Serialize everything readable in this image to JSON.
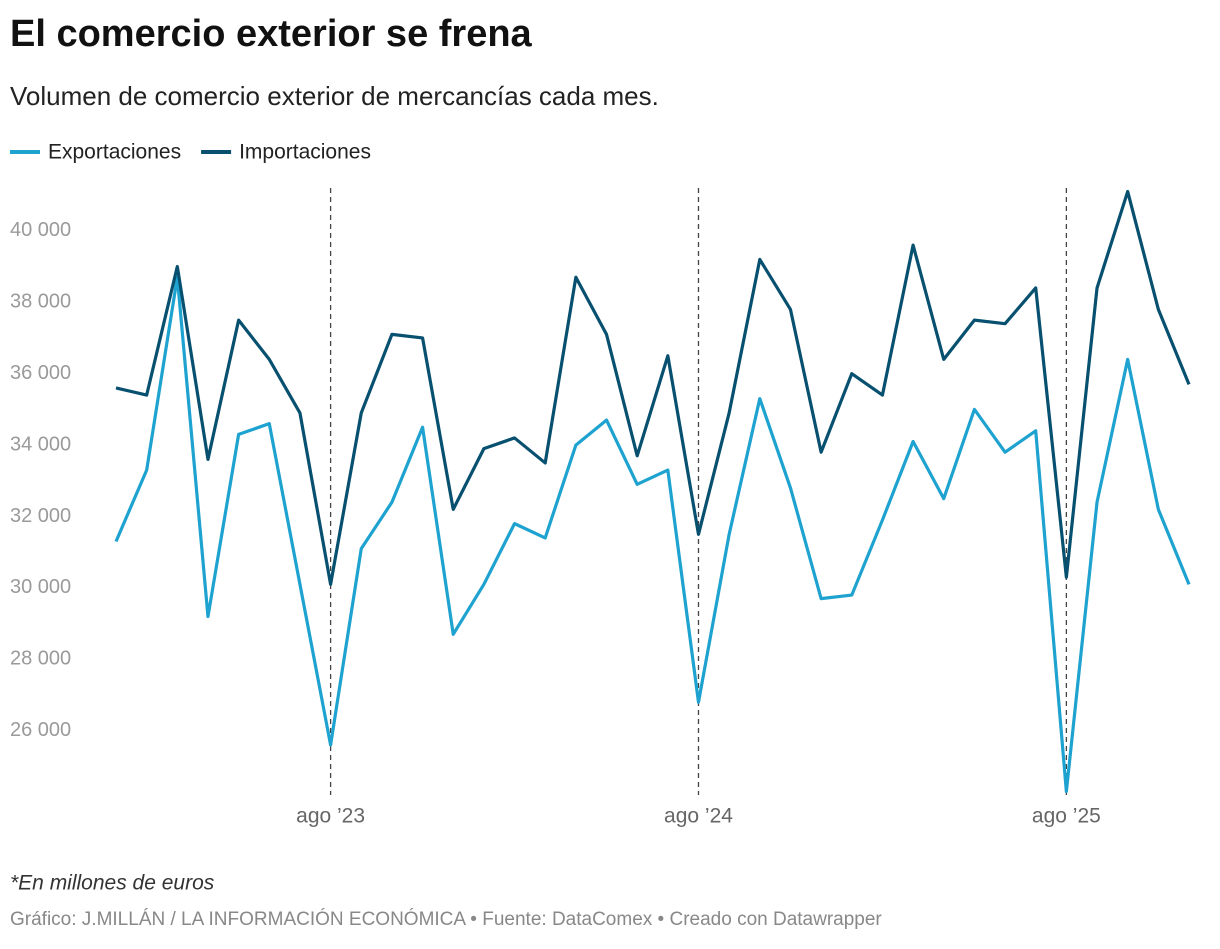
{
  "chart_data": {
    "type": "line",
    "title": "El comercio exterior se frena",
    "subtitle": "Volumen de comercio exterior de mercancías cada mes.",
    "note": "*En millones de euros",
    "source": "Gráfico: J.MILLÁN / LA INFORMACIÓN ECONÓMICA • Fuente: DataComex • Creado con Datawrapper",
    "categories": [
      null,
      null,
      null,
      null,
      null,
      null,
      null,
      "ago ’23",
      null,
      null,
      null,
      null,
      null,
      null,
      null,
      null,
      null,
      null,
      null,
      "ago ’24",
      null,
      null,
      null,
      null,
      null,
      null,
      null,
      null,
      null,
      null,
      null,
      "ago ’25",
      null,
      null,
      null,
      null
    ],
    "series": [
      {
        "name": "Exportaciones",
        "color": "#1ea2cf",
        "values": [
          31300,
          33300,
          38700,
          29200,
          34300,
          34600,
          30100,
          25600,
          31100,
          32400,
          34500,
          28700,
          30100,
          31800,
          31400,
          34000,
          34700,
          32900,
          33300,
          26800,
          31500,
          35300,
          32800,
          29700,
          29800,
          31900,
          34100,
          32500,
          35000,
          33800,
          34400,
          24300,
          32400,
          36400,
          32200,
          30100
        ]
      },
      {
        "name": "Importaciones",
        "color": "#08506f",
        "values": [
          35600,
          35400,
          39000,
          33600,
          37500,
          36400,
          34900,
          30100,
          34900,
          37100,
          37000,
          32200,
          33900,
          34200,
          33500,
          38700,
          37100,
          33700,
          36500,
          31500,
          34900,
          39200,
          37800,
          33800,
          36000,
          35400,
          39600,
          36400,
          37500,
          37400,
          38400,
          30300,
          38400,
          41100,
          37800,
          35700
        ]
      }
    ],
    "ylim": [
      24200,
      41200
    ],
    "yticks": [
      {
        "value": 26000,
        "label": "26 000"
      },
      {
        "value": 28000,
        "label": "28 000"
      },
      {
        "value": 30000,
        "label": "30 000"
      },
      {
        "value": 32000,
        "label": "32 000"
      },
      {
        "value": 34000,
        "label": "34 000"
      },
      {
        "value": 36000,
        "label": "36 000"
      },
      {
        "value": 38000,
        "label": "38 000"
      },
      {
        "value": 40000,
        "label": "40 000"
      }
    ]
  }
}
